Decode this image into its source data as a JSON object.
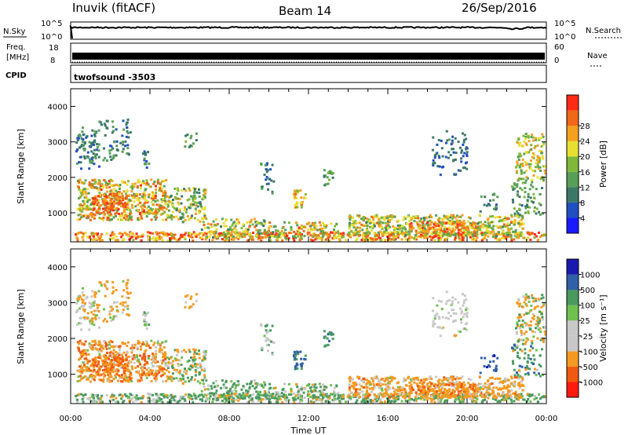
{
  "header": {
    "station": "Inuvik (fitACF)",
    "beam": "Beam 14",
    "date": "26/Sep/2016"
  },
  "top_panels": {
    "nsky_label": "N.Sky",
    "nsky_ticks": [
      "10^5",
      "10^0"
    ],
    "nsearch_label": "N.Search",
    "nsearch_ticks": [
      "10^5",
      "10^0"
    ],
    "freq_label": "Freq.",
    "freq_unit": "[MHz]",
    "freq_ticks": [
      "18",
      "8"
    ],
    "nave_label": "Nave",
    "nave_ticks": [
      "60",
      "0"
    ],
    "cpid_label": "CPID",
    "cpid_value": "twofsound -3503"
  },
  "colors": {
    "power_scale": [
      "#1a1aff",
      "#2050c0",
      "#3c7868",
      "#58a058",
      "#80b83a",
      "#e8e030",
      "#f5a020",
      "#f06818",
      "#ff2a14"
    ],
    "velocity_scale": [
      "#ff1a10",
      "#f05a10",
      "#f59a20",
      "#c8c8c8",
      "#c8c8c8",
      "#70c050",
      "#4a9a60",
      "#3060a8",
      "#1a1ab0"
    ]
  },
  "chart_data": [
    {
      "type": "heatmap",
      "name": "power",
      "xlabel": "Time UT",
      "ylabel": "Slant Range [km]",
      "x_ticks": [
        "00:00",
        "04:00",
        "08:00",
        "12:00",
        "16:00",
        "20:00",
        "00:00"
      ],
      "x_range_hours": [
        0,
        24
      ],
      "y_ticks": [
        1000,
        2000,
        3000,
        4000
      ],
      "ylim": [
        180,
        4500
      ],
      "colorbar_label": "Power [dB]",
      "colorbar_ticks": [
        "4",
        "8",
        "12",
        "16",
        "20",
        "24",
        "28"
      ],
      "colorbar_range": [
        0,
        32
      ]
    },
    {
      "type": "heatmap",
      "name": "velocity",
      "xlabel": "Time UT",
      "ylabel": "Slant Range [km]",
      "x_ticks": [
        "00:00",
        "04:00",
        "08:00",
        "12:00",
        "16:00",
        "20:00",
        "00:00"
      ],
      "x_range_hours": [
        0,
        24
      ],
      "y_ticks": [
        1000,
        2000,
        3000,
        4000
      ],
      "ylim": [
        180,
        4500
      ],
      "colorbar_label": "Velocity [m s⁻¹]",
      "colorbar_ticks": [
        "-1000",
        "-500",
        "-100",
        "-25",
        "25",
        "100",
        "500",
        "1000"
      ]
    }
  ]
}
